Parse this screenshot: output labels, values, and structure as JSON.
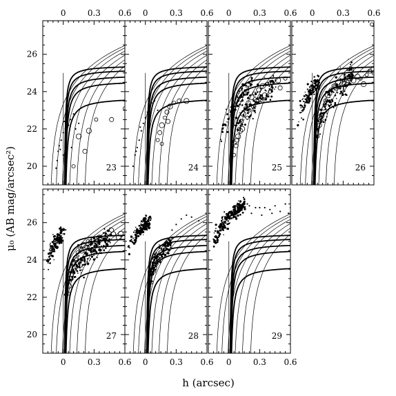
{
  "chart_data": {
    "type": "scatter",
    "xlabel": "h (arcsec)",
    "ylabel": "μ₀ (AB mag/arcsec²)",
    "xlim": [
      -0.2,
      0.6
    ],
    "ylim": [
      19,
      27.8
    ],
    "x_ticks": [
      0,
      0.3,
      0.6
    ],
    "x_tick_labels": [
      "0",
      "0.3",
      "0.6"
    ],
    "y_ticks": [
      20,
      22,
      24,
      26
    ],
    "y_tick_labels": [
      "20",
      "22",
      "24",
      "26"
    ],
    "grid": false,
    "panel_labels": [
      "23",
      "24",
      "25",
      "26",
      "27",
      "28",
      "29"
    ],
    "panel_layout": "2 rows × 4 columns, top row panels 23–26, bottom row panels 27–29",
    "model_curves": {
      "thick_asymptotes": [
        25.4,
        25.2,
        24.9,
        24.6,
        23.7
      ],
      "thin_curve_shifts": [
        -0.13,
        -0.08,
        -0.02,
        0.05,
        0.12,
        0.2
      ]
    },
    "panels": [
      {
        "label": "23",
        "clouds": [],
        "dots": [
          [
            -0.07,
            19.9
          ],
          [
            -0.06,
            20.3
          ],
          [
            -0.05,
            20.8
          ],
          [
            -0.04,
            21.1
          ],
          [
            -0.02,
            21.4
          ],
          [
            0.0,
            21.8
          ],
          [
            0.02,
            22.0
          ],
          [
            0.05,
            22.2
          ],
          [
            0.07,
            22.5
          ],
          [
            0.1,
            22.8
          ],
          [
            0.12,
            22.0
          ],
          [
            0.15,
            22.3
          ],
          [
            0.0,
            20.6
          ],
          [
            0.03,
            21.6
          ],
          [
            0.08,
            21.0
          ],
          [
            0.01,
            22.4
          ],
          [
            0.04,
            23.2
          ],
          [
            -0.03,
            20.9
          ]
        ],
        "circles": [
          [
            0.1,
            20.0
          ],
          [
            0.21,
            20.8
          ],
          [
            0.25,
            21.9
          ],
          [
            0.32,
            22.5
          ],
          [
            0.47,
            22.5
          ],
          [
            0.15,
            21.6
          ],
          [
            0.6,
            23.1
          ]
        ]
      },
      {
        "label": "24",
        "clouds": [],
        "dots": [
          [
            -0.12,
            20.0
          ],
          [
            -0.1,
            20.6
          ],
          [
            -0.08,
            21.0
          ],
          [
            -0.06,
            21.4
          ],
          [
            -0.04,
            21.9
          ],
          [
            -0.02,
            22.3
          ],
          [
            0.0,
            22.6
          ],
          [
            0.02,
            22.9
          ],
          [
            0.04,
            23.1
          ],
          [
            0.06,
            23.4
          ],
          [
            0.09,
            23.5
          ],
          [
            0.12,
            23.0
          ],
          [
            -0.05,
            22.1
          ],
          [
            0.03,
            22.2
          ],
          [
            -0.09,
            20.8
          ]
        ],
        "circles": [
          [
            0.12,
            21.4
          ],
          [
            0.14,
            21.8
          ],
          [
            0.16,
            22.2
          ],
          [
            0.19,
            22.6
          ],
          [
            0.21,
            22.9
          ],
          [
            0.24,
            23.2
          ],
          [
            0.28,
            23.4
          ],
          [
            0.33,
            23.5
          ],
          [
            0.4,
            23.5
          ],
          [
            0.16,
            21.2
          ],
          [
            0.22,
            22.4
          ]
        ]
      },
      {
        "label": "25",
        "clouds": [
          {
            "x0": -0.08,
            "x1": 0.22,
            "y0": 20.5,
            "y1": 24.4,
            "spread": 0.2,
            "n": 90,
            "seed": 251
          },
          {
            "x0": 0.02,
            "x1": 0.45,
            "y0": 20.4,
            "y1": 24.4,
            "spread": 0.3,
            "n": 120,
            "seed": 252
          }
        ],
        "dots": [],
        "circles": [
          [
            0.05,
            20.6
          ],
          [
            0.07,
            21.1
          ],
          [
            0.09,
            21.6
          ],
          [
            0.1,
            22.0
          ],
          [
            0.12,
            22.4
          ],
          [
            0.14,
            22.8
          ],
          [
            0.16,
            23.1
          ],
          [
            0.19,
            23.4
          ],
          [
            0.22,
            23.7
          ],
          [
            0.25,
            23.9
          ],
          [
            0.29,
            24.1
          ],
          [
            0.33,
            24.3
          ],
          [
            0.37,
            24.4
          ],
          [
            0.42,
            24.5
          ],
          [
            0.48,
            24.6
          ],
          [
            0.55,
            24.7
          ],
          [
            0.08,
            21.4
          ],
          [
            0.13,
            22.0
          ],
          [
            0.18,
            22.6
          ],
          [
            0.24,
            23.2
          ],
          [
            0.31,
            23.6
          ],
          [
            0.4,
            24.0
          ],
          [
            0.5,
            24.2
          ],
          [
            0.11,
            21.9
          ],
          [
            0.2,
            23.0
          ],
          [
            0.27,
            23.5
          ],
          [
            0.35,
            23.8
          ]
        ]
      },
      {
        "label": "26",
        "clouds": [
          {
            "x0": -0.13,
            "x1": 0.06,
            "y0": 21.8,
            "y1": 24.6,
            "spread": 0.22,
            "n": 130,
            "seed": 261
          },
          {
            "x0": 0.02,
            "x1": 0.4,
            "y0": 20.6,
            "y1": 25.0,
            "spread": 0.3,
            "n": 160,
            "seed": 262
          }
        ],
        "dots": [],
        "circles": [
          [
            0.05,
            21.6
          ],
          [
            0.07,
            22.2
          ],
          [
            0.09,
            22.7
          ],
          [
            0.11,
            23.1
          ],
          [
            0.13,
            23.5
          ],
          [
            0.15,
            23.8
          ],
          [
            0.18,
            24.1
          ],
          [
            0.21,
            24.3
          ],
          [
            0.25,
            24.5
          ],
          [
            0.3,
            24.6
          ],
          [
            0.36,
            24.7
          ],
          [
            0.44,
            24.8
          ],
          [
            0.53,
            24.9
          ],
          [
            0.6,
            25.0
          ],
          [
            0.08,
            22.5
          ],
          [
            0.12,
            23.3
          ],
          [
            0.17,
            23.9
          ],
          [
            0.23,
            24.2
          ],
          [
            0.28,
            24.4
          ],
          [
            0.34,
            24.5
          ],
          [
            0.4,
            24.6
          ],
          [
            0.47,
            24.7
          ],
          [
            0.56,
            25.1
          ],
          [
            0.5,
            24.4
          ],
          [
            0.58,
            27.6
          ]
        ]
      },
      {
        "label": "27",
        "clouds": [
          {
            "x0": -0.15,
            "x1": 0.0,
            "y0": 23.3,
            "y1": 25.6,
            "spread": 0.2,
            "n": 130,
            "seed": 271
          },
          {
            "x0": 0.02,
            "x1": 0.45,
            "y0": 21.8,
            "y1": 25.2,
            "spread": 0.3,
            "n": 180,
            "seed": 272
          }
        ],
        "dots": [],
        "circles": [
          [
            0.05,
            22.2
          ],
          [
            0.06,
            22.6
          ],
          [
            0.07,
            23.0
          ],
          [
            0.09,
            23.4
          ],
          [
            0.1,
            23.8
          ],
          [
            0.12,
            24.1
          ],
          [
            0.14,
            24.4
          ],
          [
            0.17,
            24.6
          ],
          [
            0.2,
            24.8
          ],
          [
            0.24,
            25.0
          ],
          [
            0.29,
            25.1
          ],
          [
            0.35,
            25.2
          ],
          [
            0.42,
            25.3
          ],
          [
            0.49,
            25.4
          ],
          [
            0.56,
            25.4
          ],
          [
            0.08,
            23.2
          ],
          [
            0.13,
            24.0
          ],
          [
            0.18,
            24.5
          ],
          [
            0.22,
            24.7
          ],
          [
            0.27,
            24.9
          ],
          [
            0.33,
            25.0
          ],
          [
            0.4,
            25.1
          ],
          [
            0.47,
            25.6
          ],
          [
            0.54,
            25.2
          ],
          [
            0.1,
            23.6
          ]
        ]
      },
      {
        "label": "28",
        "clouds": [
          {
            "x0": -0.15,
            "x1": 0.04,
            "y0": 24.2,
            "y1": 26.1,
            "spread": 0.18,
            "n": 140,
            "seed": 281
          },
          {
            "x0": 0.02,
            "x1": 0.25,
            "y0": 22.2,
            "y1": 25.0,
            "spread": 0.22,
            "n": 130,
            "seed": 282
          }
        ],
        "dots": [
          [
            0.3,
            25.9
          ],
          [
            0.35,
            26.2
          ],
          [
            0.4,
            26.4
          ],
          [
            0.52,
            26.1
          ],
          [
            0.45,
            26.3
          ],
          [
            0.26,
            25.6
          ]
        ],
        "circles": [
          [
            0.06,
            22.8
          ],
          [
            0.08,
            23.4
          ],
          [
            0.1,
            23.8
          ],
          [
            0.12,
            24.1
          ],
          [
            0.15,
            24.4
          ],
          [
            0.18,
            24.6
          ],
          [
            0.21,
            24.8
          ],
          [
            0.09,
            23.6
          ],
          [
            0.13,
            24.2
          ]
        ]
      },
      {
        "label": "29",
        "clouds": [
          {
            "x0": -0.15,
            "x1": 0.15,
            "y0": 24.4,
            "y1": 27.0,
            "spread": 0.2,
            "n": 230,
            "seed": 291
          }
        ],
        "dots": [
          [
            0.2,
            26.9
          ],
          [
            0.26,
            26.8
          ],
          [
            0.3,
            26.8
          ],
          [
            0.35,
            26.8
          ],
          [
            0.4,
            26.7
          ],
          [
            0.45,
            26.9
          ],
          [
            0.5,
            26.6
          ],
          [
            0.55,
            27.0
          ],
          [
            0.6,
            26.8
          ],
          [
            0.18,
            27.0
          ],
          [
            0.22,
            26.5
          ],
          [
            0.32,
            26.4
          ],
          [
            0.42,
            26.5
          ],
          [
            0.58,
            26.5
          ]
        ],
        "circles": []
      }
    ]
  }
}
